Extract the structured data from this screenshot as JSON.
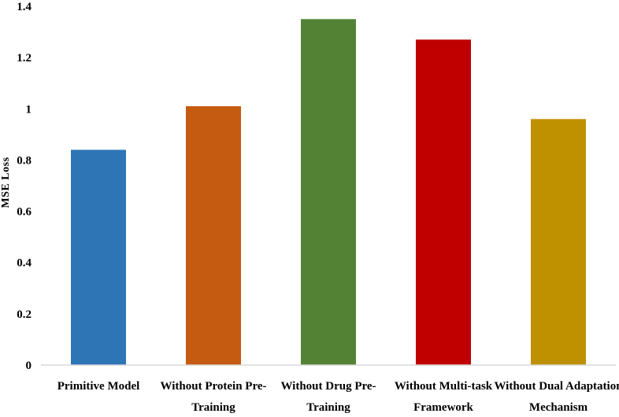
{
  "chart_data": {
    "type": "bar",
    "title": "",
    "xlabel": "",
    "ylabel": "MSE Loss",
    "ylim": [
      0,
      1.4
    ],
    "yticks": [
      0,
      0.2,
      0.4,
      0.6,
      0.8,
      1,
      1.2,
      1.4
    ],
    "ytick_labels": [
      "0",
      "0.2",
      "0.4",
      "0.6",
      "0.8",
      "1",
      "1.2",
      "1.4"
    ],
    "grid": false,
    "categories": [
      [
        "Primitive Model"
      ],
      [
        "Without Protein Pre-",
        "Training"
      ],
      [
        "Without Drug Pre-",
        "Training"
      ],
      [
        "Without Multi-task",
        "Framework"
      ],
      [
        "Without Dual Adaptation",
        "Mechanism"
      ]
    ],
    "values": [
      0.84,
      1.01,
      1.35,
      1.27,
      0.96
    ],
    "colors": [
      "#2e75b6",
      "#c55a11",
      "#548235",
      "#c00000",
      "#bf9000"
    ]
  }
}
